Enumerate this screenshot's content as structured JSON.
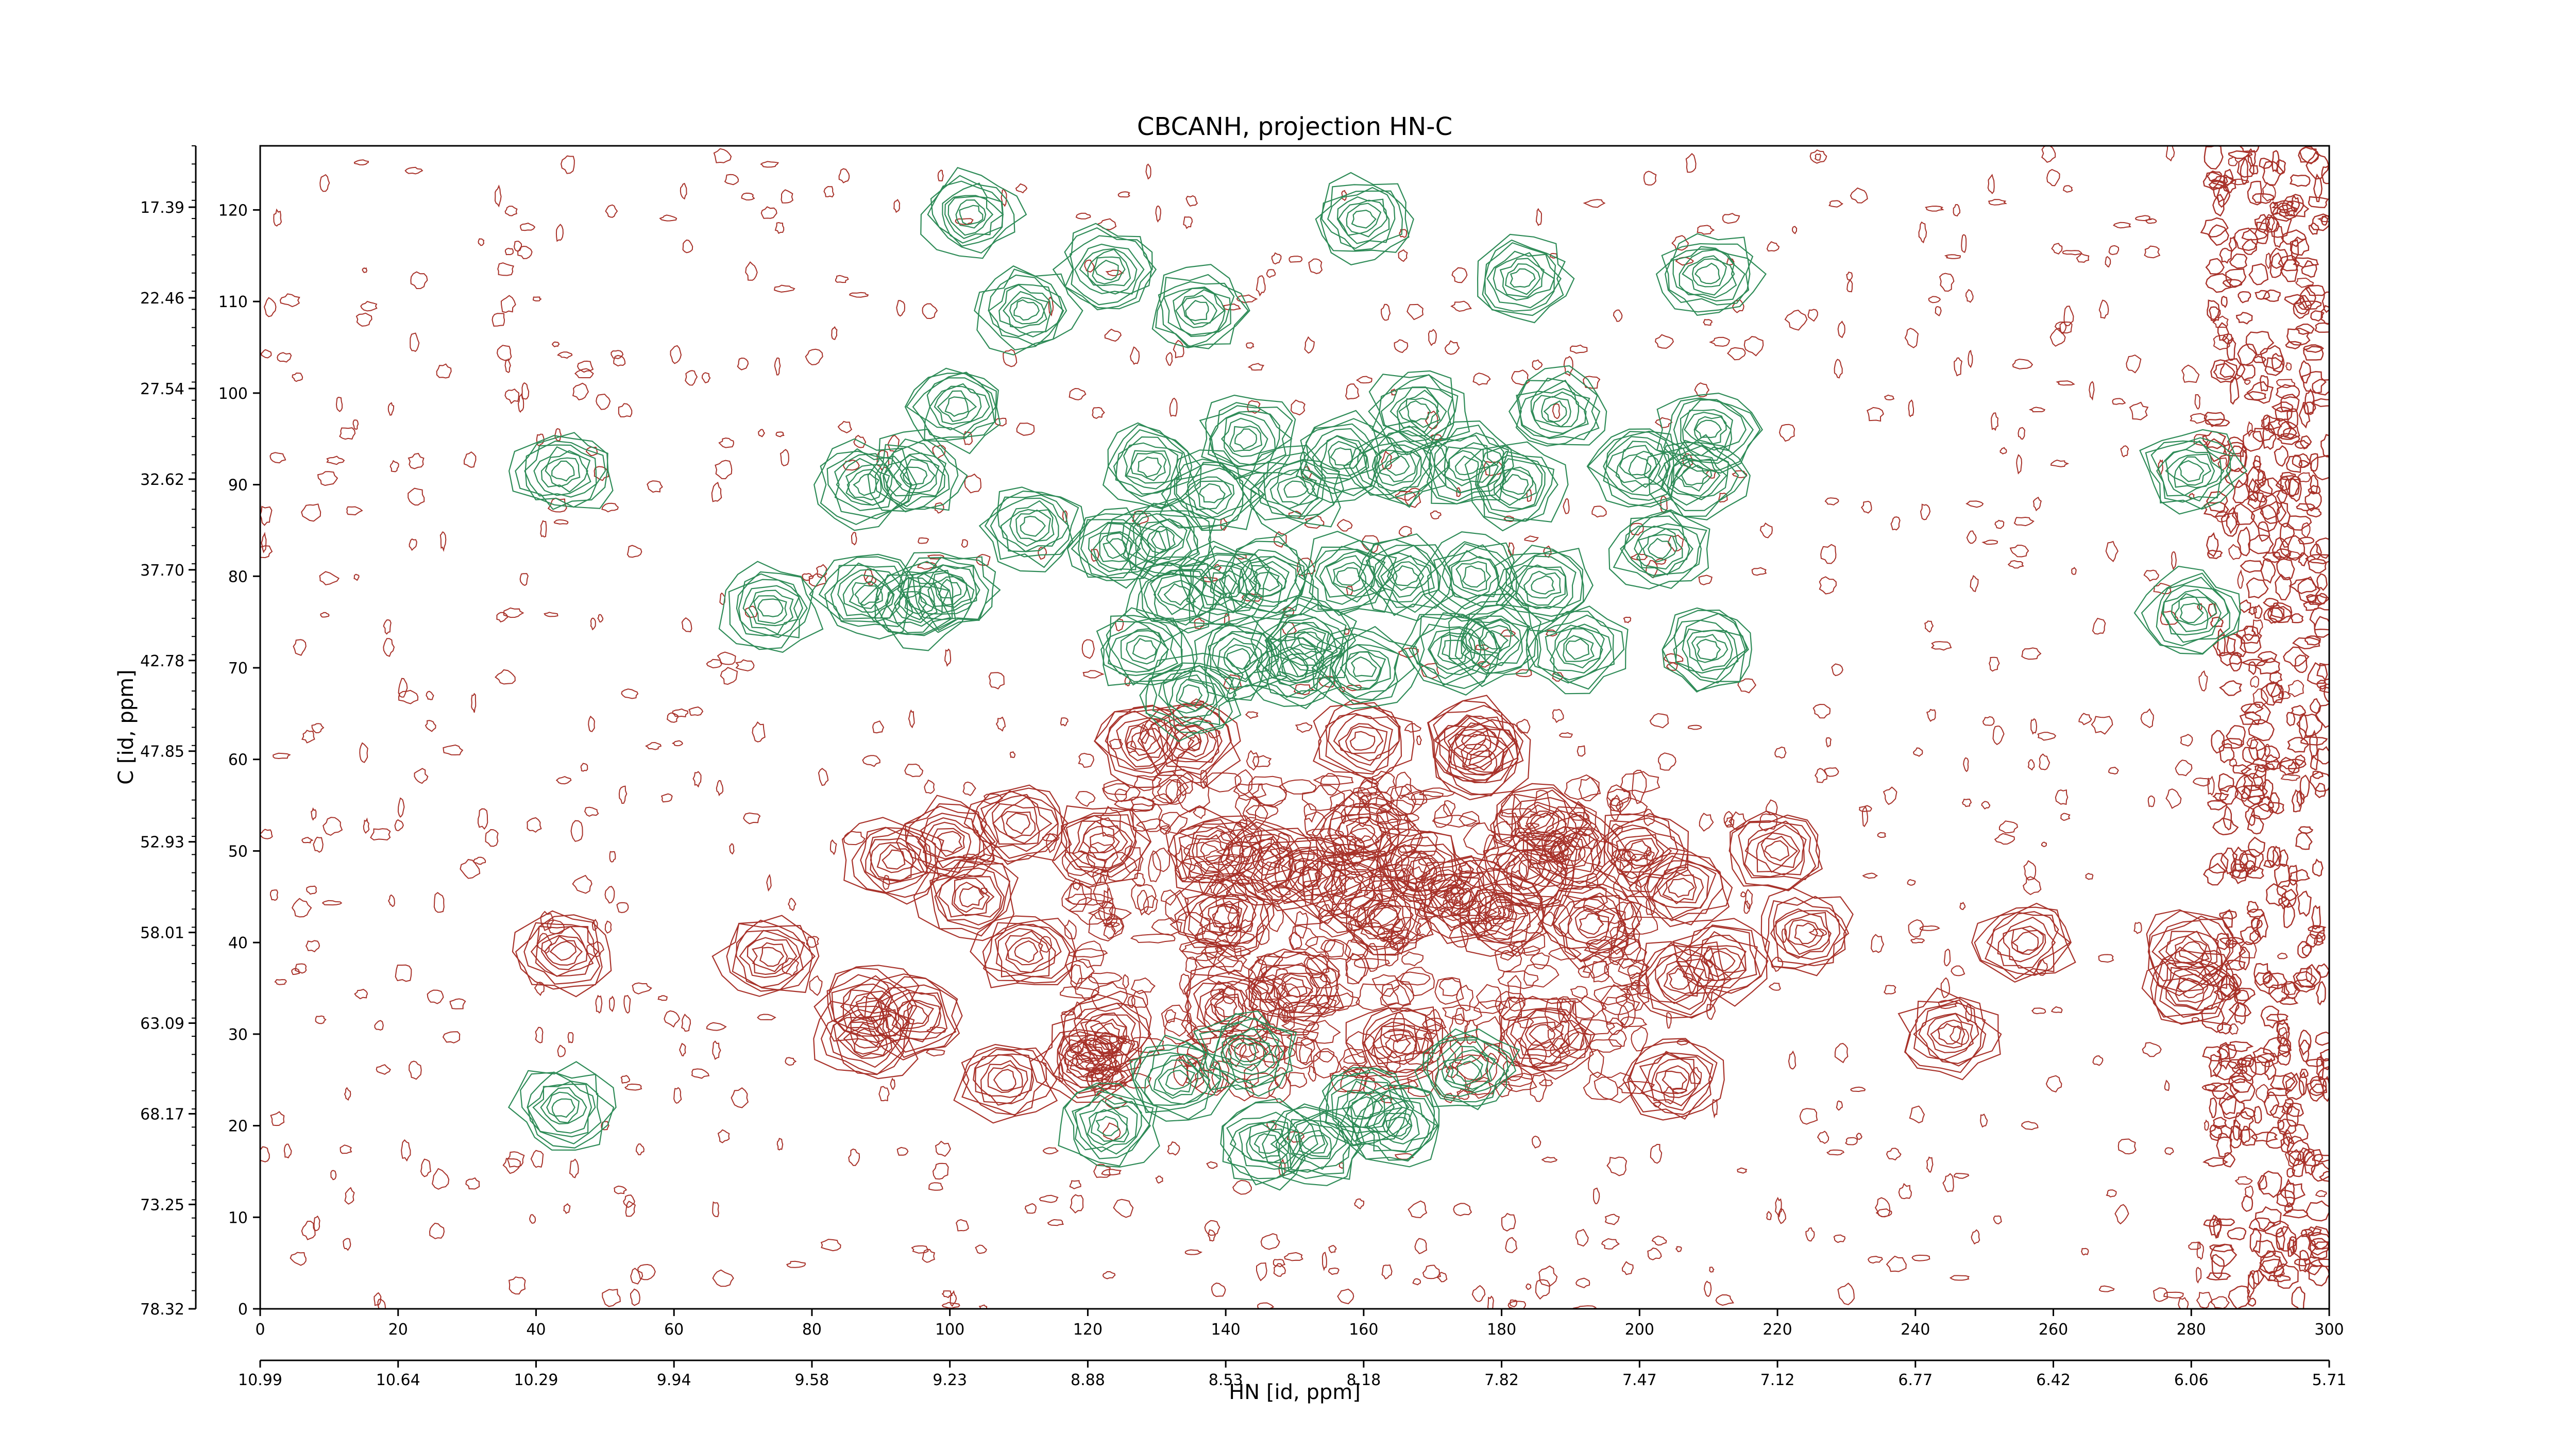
{
  "chart_data": {
    "type": "contour",
    "title": "CBCANH, projection HN-C",
    "xlabel": "HN [id, ppm]",
    "ylabel": "C [id, ppm]",
    "xlim": [
      0,
      300
    ],
    "ylim": [
      0,
      127
    ],
    "x_index_ticks": [
      0,
      20,
      40,
      60,
      80,
      100,
      120,
      140,
      160,
      180,
      200,
      220,
      240,
      260,
      280,
      300
    ],
    "y_index_ticks": [
      0,
      10,
      20,
      30,
      40,
      50,
      60,
      70,
      80,
      90,
      100,
      110,
      120
    ],
    "x_ppm_tick_labels": [
      "10.99",
      "10.64",
      "10.29",
      "9.94",
      "9.58",
      "9.23",
      "8.88",
      "8.53",
      "8.18",
      "7.82",
      "7.47",
      "7.12",
      "6.77",
      "6.42",
      "6.06",
      "5.71"
    ],
    "y_ppm_tick_labels": [
      "17.39",
      "22.46",
      "27.54",
      "32.62",
      "37.70",
      "42.78",
      "47.85",
      "52.93",
      "58.01",
      "63.09",
      "68.17",
      "73.25",
      "78.32"
    ],
    "y_ppm_tick_positions": [
      120.3,
      110.4,
      100.5,
      90.6,
      80.7,
      70.8,
      60.9,
      51.0,
      41.1,
      31.2,
      21.3,
      11.4,
      0
    ],
    "colors": {
      "positive": "#a8322a",
      "negative": "#2e8b57"
    },
    "grid": false,
    "peaks_negative": [
      [
        103,
        119.5
      ],
      [
        123,
        113.5
      ],
      [
        111,
        109
      ],
      [
        136,
        109
      ],
      [
        160,
        119
      ],
      [
        183,
        112.5
      ],
      [
        210,
        113
      ],
      [
        44,
        91.5
      ],
      [
        88,
        90
      ],
      [
        95,
        91
      ],
      [
        101,
        98.5
      ],
      [
        112,
        85.5
      ],
      [
        129,
        92
      ],
      [
        138,
        89
      ],
      [
        143,
        95
      ],
      [
        150,
        89.5
      ],
      [
        157,
        93
      ],
      [
        165,
        92
      ],
      [
        168,
        98
      ],
      [
        175,
        92
      ],
      [
        182,
        90
      ],
      [
        188,
        98
      ],
      [
        200,
        92
      ],
      [
        208,
        91
      ],
      [
        210,
        96
      ],
      [
        280,
        91.5
      ],
      [
        74,
        76.5
      ],
      [
        88,
        78
      ],
      [
        95,
        77
      ],
      [
        100,
        78.5
      ],
      [
        124,
        83
      ],
      [
        131,
        84
      ],
      [
        133,
        78
      ],
      [
        140,
        79
      ],
      [
        146,
        79.5
      ],
      [
        152,
        73
      ],
      [
        158,
        80
      ],
      [
        166,
        80
      ],
      [
        176,
        80
      ],
      [
        179,
        73
      ],
      [
        186,
        79
      ],
      [
        191,
        72
      ],
      [
        203,
        83
      ],
      [
        210,
        72
      ],
      [
        280,
        76
      ],
      [
        128,
        72
      ],
      [
        135,
        67
      ],
      [
        142,
        71
      ],
      [
        150,
        70
      ],
      [
        160,
        70
      ],
      [
        173,
        72
      ],
      [
        44,
        22
      ],
      [
        123,
        20
      ],
      [
        133,
        25
      ],
      [
        143,
        28
      ],
      [
        146,
        18
      ],
      [
        153,
        18
      ],
      [
        160,
        22
      ],
      [
        165,
        20
      ],
      [
        175,
        26
      ]
    ],
    "peaks_positive": [
      [
        44,
        39
      ],
      [
        74,
        38.5
      ],
      [
        88,
        29.5
      ],
      [
        88,
        33
      ],
      [
        95,
        32
      ],
      [
        92,
        49
      ],
      [
        100,
        51
      ],
      [
        103,
        45
      ],
      [
        111,
        39
      ],
      [
        110,
        53
      ],
      [
        122,
        51
      ],
      [
        123,
        30
      ],
      [
        120,
        27
      ],
      [
        128,
        62
      ],
      [
        135,
        62
      ],
      [
        138,
        50
      ],
      [
        140,
        43
      ],
      [
        146,
        49
      ],
      [
        152,
        47
      ],
      [
        158,
        46
      ],
      [
        163,
        43
      ],
      [
        168,
        48
      ],
      [
        174,
        45
      ],
      [
        180,
        43
      ],
      [
        184,
        48
      ],
      [
        190,
        50
      ],
      [
        193,
        42
      ],
      [
        186,
        30
      ],
      [
        140,
        33
      ],
      [
        150,
        35
      ],
      [
        160,
        52
      ],
      [
        165,
        29
      ],
      [
        160,
        62
      ],
      [
        176,
        62
      ],
      [
        177,
        60
      ],
      [
        206,
        46
      ],
      [
        212,
        38
      ],
      [
        206,
        36
      ],
      [
        220,
        50
      ],
      [
        224,
        41
      ],
      [
        245,
        30
      ],
      [
        256,
        40
      ],
      [
        280,
        39
      ],
      [
        280,
        35
      ],
      [
        205,
        25
      ],
      [
        108,
        25
      ],
      [
        186,
        53
      ],
      [
        200,
        50
      ]
    ]
  }
}
